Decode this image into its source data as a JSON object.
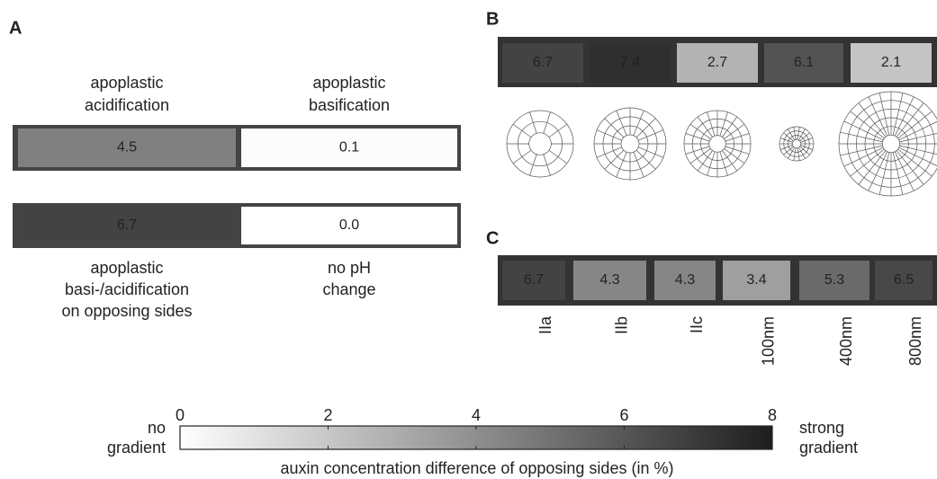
{
  "panel_a": {
    "label": "A",
    "top_labels": [
      [
        "apoplastic",
        "acidification"
      ],
      [
        "apoplastic",
        "basification"
      ]
    ],
    "rows": [
      {
        "values": [
          4.5,
          0.1
        ],
        "value_labels": [
          "4.5",
          "0.1"
        ]
      },
      {
        "values": [
          6.7,
          0.0
        ],
        "value_labels": [
          "6.7",
          "0.0"
        ]
      }
    ],
    "bottom_labels": [
      [
        "apoplastic",
        "basi-/acidification",
        "on opposing sides"
      ],
      [
        "no pH",
        "change"
      ]
    ]
  },
  "panel_b": {
    "label": "B",
    "values": [
      6.7,
      7.4,
      2.7,
      6.1,
      2.1
    ]
  },
  "panel_c": {
    "label": "C",
    "values": [
      6.7,
      4.3,
      4.3,
      3.4,
      5.3,
      6.5
    ],
    "categories": [
      "IIa",
      "IIb",
      "IIc",
      "100nm",
      "400nm",
      "800nm"
    ]
  },
  "colorbar": {
    "left_label": [
      "no",
      "gradient"
    ],
    "right_label": [
      "strong",
      "gradient"
    ],
    "lim": [
      0,
      8
    ],
    "ticks": [
      0,
      2,
      4,
      6,
      8
    ],
    "axis_label": "auxin concentration difference of opposing sides (in %)"
  }
}
